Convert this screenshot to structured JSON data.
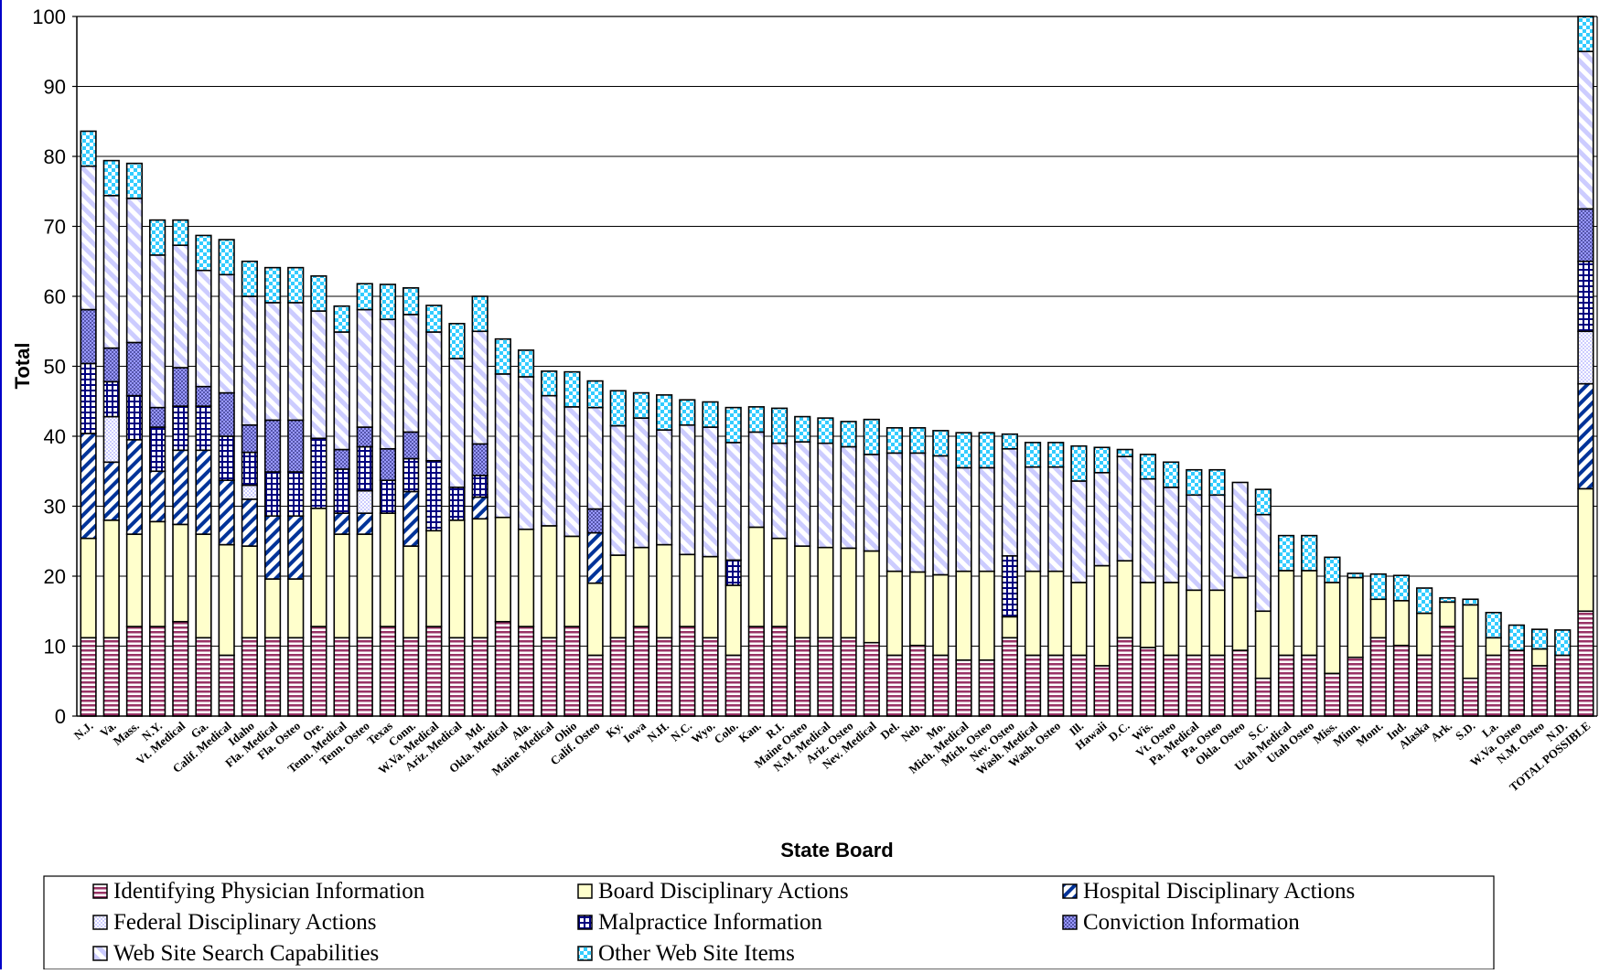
{
  "chart_data": {
    "type": "bar",
    "stacked": true,
    "xlabel": "State Board",
    "ylabel": "Total",
    "ylim": [
      0,
      100
    ],
    "yticks": [
      0,
      10,
      20,
      30,
      40,
      50,
      60,
      70,
      80,
      90,
      100
    ],
    "grid": true,
    "legend_position": "bottom",
    "categories": [
      "N.J.",
      "Va.",
      "Mass.",
      "N.Y.",
      "Vt. Medical",
      "Ga.",
      "Calif. Medical",
      "Idaho",
      "Fla. Medical",
      "Fla. Osteo",
      "Ore.",
      "Tenn. Medical",
      "Tenn. Osteo",
      "Texas",
      "Conn.",
      "W.Va. Medical",
      "Ariz. Medical",
      "Md.",
      "Okla. Medical",
      "Ala.",
      "Maine Medical",
      "Ohio",
      "Calif. Osteo",
      "Ky.",
      "Iowa",
      "N.H.",
      "N.C.",
      "Wyo.",
      "Colo.",
      "Kan.",
      "R.I.",
      "Maine Osteo",
      "N.M. Medical",
      "Ariz. Osteo",
      "Nev. Medical",
      "Del.",
      "Neb.",
      "Mo.",
      "Mich. Medical",
      "Mich. Osteo",
      "Nev. Osteo",
      "Wash. Medical",
      "Wash. Osteo",
      "Ill.",
      "Hawaii",
      "D.C.",
      "Wis.",
      "Vt. Osteo",
      "Pa. Medical",
      "Pa. Osteo",
      "Okla. Osteo",
      "S.C.",
      "Utah Medical",
      "Utah Osteo",
      "Miss.",
      "Minn.",
      "Mont.",
      "Ind.",
      "Alaska",
      "Ark.",
      "S.D.",
      "La.",
      "W.Va. Osteo",
      "N.M. Osteo",
      "N.D.",
      "TOTAL POSSIBLE"
    ],
    "series": [
      {
        "name": "Identifying Physician Information",
        "color": "#993366",
        "pattern": "hstripe",
        "values": [
          11.2,
          11.2,
          12.8,
          12.8,
          13.5,
          11.2,
          8.7,
          11.2,
          11.2,
          11.2,
          12.8,
          11.2,
          11.2,
          12.8,
          11.2,
          12.8,
          11.2,
          11.2,
          13.5,
          12.8,
          11.2,
          12.8,
          8.7,
          11.2,
          12.8,
          11.2,
          12.8,
          11.2,
          8.7,
          12.8,
          12.8,
          11.2,
          11.2,
          11.2,
          10.5,
          8.7,
          10.1,
          8.7,
          8.0,
          8.0,
          11.2,
          8.7,
          8.7,
          8.7,
          7.2,
          11.2,
          9.8,
          8.7,
          8.7,
          8.7,
          9.4,
          5.4,
          8.7,
          8.7,
          6.1,
          8.4,
          11.2,
          10.1,
          8.7,
          12.8,
          5.4,
          8.7,
          9.4,
          7.2,
          8.7,
          15.0
        ]
      },
      {
        "name": "Board Disciplinary Actions",
        "color": "#ffffcc",
        "pattern": "solid",
        "values": [
          14.2,
          16.8,
          13.2,
          15.0,
          13.9,
          14.8,
          15.8,
          13.1,
          8.4,
          8.4,
          16.9,
          14.8,
          14.8,
          16.2,
          13.1,
          13.7,
          16.8,
          17.0,
          14.9,
          13.9,
          16.0,
          12.9,
          10.3,
          11.8,
          11.3,
          13.3,
          10.3,
          11.6,
          10.0,
          14.2,
          12.6,
          13.1,
          12.9,
          12.8,
          13.1,
          12.0,
          10.5,
          11.5,
          12.7,
          12.7,
          3.0,
          12.0,
          12.0,
          10.4,
          14.3,
          11.0,
          9.3,
          10.4,
          9.3,
          9.3,
          10.4,
          9.6,
          12.1,
          12.1,
          13.0,
          11.4,
          5.5,
          6.4,
          6.0,
          3.5,
          10.5,
          2.5,
          0,
          2.4,
          0,
          17.5
        ]
      },
      {
        "name": "Hospital Disciplinary Actions",
        "color": "#003399",
        "pattern": "diagonal",
        "values": [
          15.0,
          8.3,
          13.5,
          7.2,
          10.6,
          12.0,
          9.2,
          6.7,
          9.0,
          9.0,
          0,
          3.0,
          3.0,
          0,
          7.8,
          0,
          0,
          3.1,
          0,
          0,
          0,
          0,
          7.2,
          0,
          0,
          0,
          0,
          0,
          0,
          0,
          0,
          0,
          0,
          0,
          0,
          0,
          0,
          0,
          0,
          0,
          0,
          0,
          0,
          0,
          0,
          0,
          0,
          0,
          0,
          0,
          0,
          0,
          0,
          0,
          0,
          0,
          0,
          0,
          0,
          0,
          0,
          0,
          0,
          0,
          0,
          15.0
        ]
      },
      {
        "name": "Federal Disciplinary Actions",
        "color": "#ccccff",
        "pattern": "dots",
        "values": [
          0,
          6.5,
          0,
          0,
          0,
          0,
          0,
          2.0,
          0,
          0,
          0,
          0,
          3.2,
          0,
          0,
          0,
          0,
          0,
          0,
          0,
          0,
          0,
          0,
          0,
          0,
          0,
          0,
          0,
          0,
          0,
          0,
          0,
          0,
          0,
          0,
          0,
          0,
          0,
          0,
          0,
          0,
          0,
          0,
          0,
          0,
          0,
          0,
          0,
          0,
          0,
          0,
          0,
          0,
          0,
          0,
          0,
          0,
          0,
          0,
          0,
          0,
          0,
          0,
          0,
          0,
          7.5
        ]
      },
      {
        "name": "Malpractice Information",
        "color": "#000080",
        "pattern": "grid",
        "values": [
          10.0,
          5.0,
          6.3,
          6.3,
          6.3,
          6.3,
          6.3,
          4.7,
          6.3,
          6.3,
          10.0,
          6.3,
          6.3,
          4.7,
          4.7,
          10.0,
          4.7,
          3.1,
          0,
          0,
          0,
          0,
          0,
          0,
          0,
          0,
          0,
          0,
          3.6,
          0,
          0,
          0,
          0,
          0,
          0,
          0,
          0,
          0,
          0,
          0,
          8.7,
          0,
          0,
          0,
          0,
          0,
          0,
          0,
          0,
          0,
          0,
          0,
          0,
          0,
          0,
          0,
          0,
          0,
          0,
          0,
          0,
          0,
          0,
          0,
          0,
          10.0
        ]
      },
      {
        "name": "Conviction Information",
        "color": "#9999ff",
        "pattern": "crosshatch",
        "values": [
          7.7,
          4.8,
          7.6,
          2.8,
          5.5,
          2.8,
          6.2,
          3.9,
          7.4,
          7.4,
          0,
          2.8,
          2.8,
          4.5,
          3.8,
          0,
          0,
          4.5,
          0,
          0,
          0,
          0,
          3.4,
          0,
          0,
          0,
          0,
          0,
          0,
          0,
          0,
          0,
          0,
          0,
          0,
          0,
          0,
          0,
          0,
          0,
          0,
          0,
          0,
          0,
          0,
          0,
          0,
          0,
          0,
          0,
          0,
          0,
          0,
          0,
          0,
          0,
          0,
          0,
          0,
          0,
          0,
          0,
          0,
          0,
          0,
          7.5
        ]
      },
      {
        "name": "Web Site Search Capabilities",
        "color": "#ccccff",
        "pattern": "wide-diagonal",
        "values": [
          20.5,
          21.8,
          20.6,
          21.8,
          17.5,
          16.6,
          16.9,
          18.4,
          16.8,
          16.8,
          18.2,
          16.8,
          16.8,
          18.5,
          16.8,
          18.4,
          18.4,
          16.1,
          20.5,
          21.8,
          18.6,
          18.5,
          14.5,
          18.5,
          18.5,
          16.4,
          18.5,
          18.5,
          16.8,
          13.6,
          13.6,
          14.9,
          14.9,
          14.5,
          13.8,
          16.9,
          17.0,
          17.0,
          14.8,
          14.8,
          15.3,
          14.9,
          14.9,
          14.5,
          13.3,
          14.9,
          14.8,
          13.6,
          13.6,
          13.6,
          13.6,
          13.8,
          0,
          0,
          0,
          0,
          0,
          0,
          0,
          0,
          0,
          0,
          0,
          0,
          0,
          22.5
        ]
      },
      {
        "name": "Other Web Site Items",
        "color": "#33ccff",
        "pattern": "checker",
        "values": [
          5.0,
          5.0,
          5.0,
          5.0,
          3.6,
          5.0,
          5.0,
          5.0,
          5.0,
          5.0,
          5.0,
          3.7,
          3.7,
          5.0,
          3.8,
          3.8,
          5.0,
          5.0,
          5.0,
          3.8,
          3.5,
          5.0,
          3.8,
          5.0,
          3.6,
          5.0,
          3.6,
          3.6,
          5.0,
          3.6,
          5.0,
          3.6,
          3.6,
          3.6,
          5.0,
          3.6,
          3.6,
          3.6,
          5.0,
          5.0,
          2.1,
          3.5,
          3.5,
          5.0,
          3.6,
          1.0,
          3.5,
          3.6,
          3.6,
          3.6,
          0,
          3.6,
          5.0,
          5.0,
          3.6,
          0.6,
          3.6,
          3.6,
          3.6,
          0.6,
          0.8,
          3.6,
          3.6,
          2.8,
          3.6,
          5.0
        ]
      }
    ]
  }
}
